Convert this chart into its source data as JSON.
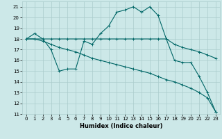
{
  "xlabel": "Humidex (Indice chaleur)",
  "bg_color": "#cce8e8",
  "grid_color": "#aacccc",
  "line_color": "#006666",
  "xlim": [
    -0.5,
    23.5
  ],
  "ylim": [
    11,
    21.5
  ],
  "xticks": [
    0,
    1,
    2,
    3,
    4,
    5,
    6,
    7,
    8,
    9,
    10,
    11,
    12,
    13,
    14,
    15,
    16,
    17,
    18,
    19,
    20,
    21,
    22,
    23
  ],
  "yticks": [
    11,
    12,
    13,
    14,
    15,
    16,
    17,
    18,
    19,
    20,
    21
  ],
  "line1_x": [
    0,
    1,
    2,
    3,
    4,
    5,
    6,
    7,
    8,
    9,
    10,
    11,
    12,
    13,
    14,
    15,
    16,
    17,
    18,
    19,
    20,
    21,
    22,
    23
  ],
  "line1_y": [
    18.0,
    18.5,
    18.0,
    17.0,
    15.0,
    15.2,
    15.2,
    17.8,
    17.5,
    18.5,
    19.2,
    20.5,
    20.7,
    21.0,
    20.5,
    21.0,
    20.2,
    18.0,
    16.0,
    15.8,
    15.8,
    14.5,
    13.0,
    11.2
  ],
  "line2_x": [
    0,
    1,
    2,
    3,
    4,
    5,
    6,
    7,
    8,
    9,
    10,
    11,
    12,
    13,
    14,
    15,
    16,
    17,
    18,
    19,
    20,
    21,
    22,
    23
  ],
  "line2_y": [
    18.0,
    18.0,
    18.0,
    18.0,
    18.0,
    18.0,
    18.0,
    18.0,
    18.0,
    18.0,
    18.0,
    18.0,
    18.0,
    18.0,
    18.0,
    18.0,
    18.0,
    18.0,
    17.5,
    17.2,
    17.0,
    16.8,
    16.5,
    16.2
  ],
  "line3_x": [
    0,
    1,
    2,
    3,
    4,
    5,
    6,
    7,
    8,
    9,
    10,
    11,
    12,
    13,
    14,
    15,
    16,
    17,
    18,
    19,
    20,
    21,
    22,
    23
  ],
  "line3_y": [
    18.0,
    18.0,
    17.8,
    17.5,
    17.2,
    17.0,
    16.8,
    16.5,
    16.2,
    16.0,
    15.8,
    15.6,
    15.4,
    15.2,
    15.0,
    14.8,
    14.5,
    14.2,
    14.0,
    13.7,
    13.4,
    13.0,
    12.5,
    11.2
  ],
  "tick_fontsize": 5.0,
  "xlabel_fontsize": 6.0,
  "linewidth": 0.8,
  "markersize": 2.5,
  "markeredgewidth": 0.7
}
